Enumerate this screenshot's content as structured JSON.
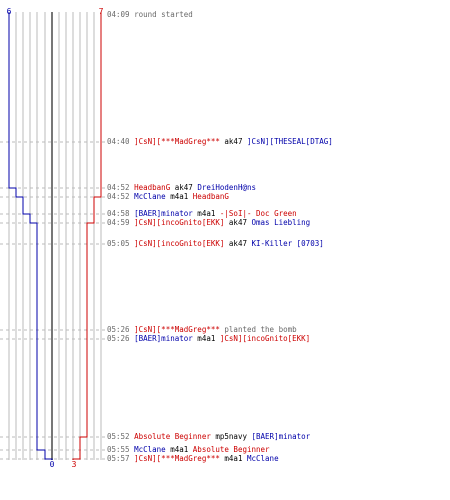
{
  "colors": {
    "red": "#cc0000",
    "blue": "#0000aa",
    "grid": "#bbbbbb",
    "center": "#777777",
    "dash": "#bbbbbb"
  },
  "score": {
    "blue_start": "6",
    "red_start": "7",
    "blue_end": "0",
    "red_end": "3"
  },
  "events": [
    {
      "time": "04:09",
      "parts": [
        {
          "t": "round started",
          "c": "text"
        }
      ]
    },
    {
      "time": "04:40",
      "parts": [
        {
          "t": "]CsN][***MadGreg***",
          "c": "red"
        },
        {
          "t": " ak47 ",
          "c": "verb"
        },
        {
          "t": "]CsN][THESEAL[DTAG]",
          "c": "blue"
        }
      ]
    },
    {
      "time": "04:52",
      "parts": [
        {
          "t": "HeadbanG",
          "c": "red"
        },
        {
          "t": " ak47 ",
          "c": "verb"
        },
        {
          "t": "DreiHodenH@ns",
          "c": "blue"
        }
      ]
    },
    {
      "time": "04:52",
      "parts": [
        {
          "t": "McClane",
          "c": "blue"
        },
        {
          "t": " m4a1 ",
          "c": "verb"
        },
        {
          "t": "HeadbanG",
          "c": "red"
        }
      ]
    },
    {
      "time": "04:58",
      "parts": [
        {
          "t": "[BAER]minator",
          "c": "blue"
        },
        {
          "t": " m4a1 ",
          "c": "verb"
        },
        {
          "t": "-|SoI|- Doc Green",
          "c": "red"
        }
      ]
    },
    {
      "time": "04:59",
      "parts": [
        {
          "t": "]CsN][incoGnito[EKK]",
          "c": "red"
        },
        {
          "t": " ak47 ",
          "c": "verb"
        },
        {
          "t": "Omas Liebling",
          "c": "blue"
        }
      ]
    },
    {
      "time": "05:05",
      "parts": [
        {
          "t": "]CsN][incoGnito[EKK]",
          "c": "red"
        },
        {
          "t": " ak47 ",
          "c": "verb"
        },
        {
          "t": "KI-Killer [0703]",
          "c": "blue"
        }
      ]
    },
    {
      "time": "05:26",
      "parts": [
        {
          "t": "]CsN][***MadGreg***",
          "c": "red"
        },
        {
          "t": " planted the bomb",
          "c": "text"
        }
      ]
    },
    {
      "time": "05:26",
      "parts": [
        {
          "t": "[BAER]minator",
          "c": "blue"
        },
        {
          "t": " m4a1 ",
          "c": "verb"
        },
        {
          "t": "]CsN][incoGnito[EKK]",
          "c": "red"
        }
      ]
    },
    {
      "time": "05:52",
      "parts": [
        {
          "t": "Absolute Beginner",
          "c": "red"
        },
        {
          "t": " mp5navy ",
          "c": "verb"
        },
        {
          "t": "[BAER]minator",
          "c": "blue"
        }
      ]
    },
    {
      "time": "05:55",
      "parts": [
        {
          "t": "McClane",
          "c": "blue"
        },
        {
          "t": " m4a1 ",
          "c": "verb"
        },
        {
          "t": "Absolute Beginner",
          "c": "red"
        }
      ]
    },
    {
      "time": "05:57",
      "parts": [
        {
          "t": "]CsN][***MadGreg***",
          "c": "red"
        },
        {
          "t": " m4a1 ",
          "c": "verb"
        },
        {
          "t": "McClane",
          "c": "blue"
        }
      ]
    }
  ]
}
